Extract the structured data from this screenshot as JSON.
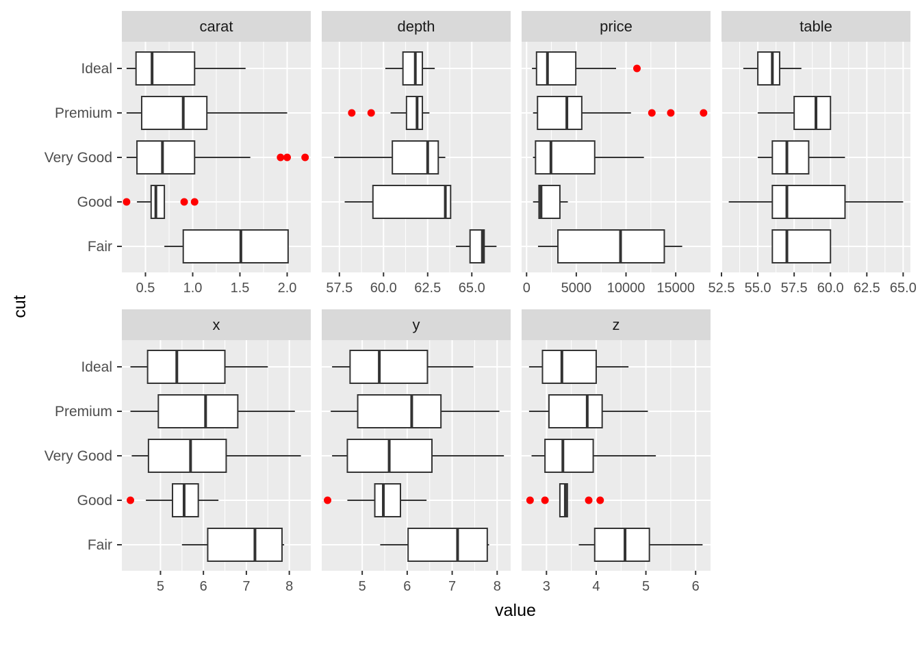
{
  "chart_data": {
    "type": "boxplot",
    "layout": "faceted horizontal boxplots",
    "xlabel": "value",
    "ylabel": "cut",
    "categories": [
      "Ideal",
      "Premium",
      "Very Good",
      "Good",
      "Fair"
    ],
    "outlier_color": "#ff0000",
    "box_fill": "#ffffff",
    "panel_background": "#ebebeb",
    "strip_background": "#d9d9d9",
    "facets": [
      {
        "name": "carat",
        "xlim": [
          0.25,
          2.25
        ],
        "ticks": [
          0.5,
          1.0,
          1.5,
          2.0
        ],
        "tick_labels": [
          "0.5",
          "1.0",
          "1.5",
          "2.0"
        ],
        "boxes": [
          {
            "cut": "Ideal",
            "min": 0.3,
            "q1": 0.4,
            "median": 0.57,
            "q3": 1.02,
            "max": 1.56,
            "outliers": []
          },
          {
            "cut": "Premium",
            "min": 0.3,
            "q1": 0.46,
            "median": 0.9,
            "q3": 1.15,
            "max": 2.0,
            "outliers": []
          },
          {
            "cut": "Very Good",
            "min": 0.3,
            "q1": 0.41,
            "median": 0.68,
            "q3": 1.02,
            "max": 1.61,
            "outliers": [
              1.93,
              2.0,
              2.19
            ]
          },
          {
            "cut": "Good",
            "min": 0.41,
            "q1": 0.56,
            "median": 0.61,
            "q3": 0.7,
            "max": 0.7,
            "outliers": [
              0.3,
              0.91,
              1.02
            ]
          },
          {
            "cut": "Fair",
            "min": 0.7,
            "q1": 0.9,
            "median": 1.51,
            "q3": 2.01,
            "max": 2.01,
            "outliers": []
          }
        ]
      },
      {
        "name": "depth",
        "xlim": [
          56.5,
          67.2
        ],
        "ticks": [
          57.5,
          60.0,
          62.5,
          65.0
        ],
        "tick_labels": [
          "57.5",
          "60.0",
          "62.5",
          "65.0"
        ],
        "boxes": [
          {
            "cut": "Ideal",
            "min": 60.1,
            "q1": 61.1,
            "median": 61.8,
            "q3": 62.2,
            "max": 62.9,
            "outliers": []
          },
          {
            "cut": "Premium",
            "min": 60.4,
            "q1": 61.3,
            "median": 61.9,
            "q3": 62.2,
            "max": 62.6,
            "outliers": [
              58.2,
              59.3
            ]
          },
          {
            "cut": "Very Good",
            "min": 57.2,
            "q1": 60.5,
            "median": 62.5,
            "q3": 63.1,
            "max": 63.5,
            "outliers": []
          },
          {
            "cut": "Good",
            "min": 57.8,
            "q1": 59.4,
            "median": 63.5,
            "q3": 63.8,
            "max": 63.8,
            "outliers": []
          },
          {
            "cut": "Fair",
            "min": 64.1,
            "q1": 64.9,
            "median": 65.6,
            "q3": 65.7,
            "max": 66.4,
            "outliers": []
          }
        ]
      },
      {
        "name": "price",
        "xlim": [
          -500,
          18500
        ],
        "ticks": [
          0,
          5000,
          10000,
          15000
        ],
        "tick_labels": [
          "0",
          "5000",
          "10000",
          "15000"
        ],
        "boxes": [
          {
            "cut": "Ideal",
            "min": 540,
            "q1": 1000,
            "median": 2100,
            "q3": 4950,
            "max": 9000,
            "outliers": [
              11100
            ]
          },
          {
            "cut": "Premium",
            "min": 650,
            "q1": 1100,
            "median": 4050,
            "q3": 5550,
            "max": 10500,
            "outliers": [
              12600,
              14500,
              17800
            ]
          },
          {
            "cut": "Very Good",
            "min": 640,
            "q1": 900,
            "median": 2450,
            "q3": 6850,
            "max": 11800,
            "outliers": []
          },
          {
            "cut": "Good",
            "min": 650,
            "q1": 1250,
            "median": 1450,
            "q3": 3350,
            "max": 4150,
            "outliers": []
          },
          {
            "cut": "Fair",
            "min": 1150,
            "q1": 3150,
            "median": 9450,
            "q3": 13850,
            "max": 15650,
            "outliers": []
          }
        ]
      },
      {
        "name": "table",
        "xlim": [
          52.5,
          65.5
        ],
        "ticks": [
          52.5,
          55.0,
          57.5,
          60.0,
          62.5,
          65.0
        ],
        "tick_labels": [
          "52.5",
          "55.0",
          "57.5",
          "60.0",
          "62.5",
          "65.0"
        ],
        "boxes": [
          {
            "cut": "Ideal",
            "min": 54.0,
            "q1": 55.0,
            "median": 56.0,
            "q3": 56.5,
            "max": 58.0,
            "outliers": []
          },
          {
            "cut": "Premium",
            "min": 55.0,
            "q1": 57.5,
            "median": 59.0,
            "q3": 60.0,
            "max": 60.0,
            "outliers": []
          },
          {
            "cut": "Very Good",
            "min": 55.0,
            "q1": 56.0,
            "median": 57.0,
            "q3": 58.5,
            "max": 61.0,
            "outliers": []
          },
          {
            "cut": "Good",
            "min": 53.0,
            "q1": 56.0,
            "median": 57.0,
            "q3": 61.0,
            "max": 65.0,
            "outliers": []
          },
          {
            "cut": "Fair",
            "min": 56.0,
            "q1": 56.0,
            "median": 57.0,
            "q3": 60.0,
            "max": 60.0,
            "outliers": []
          }
        ]
      },
      {
        "name": "x",
        "xlim": [
          4.1,
          8.5
        ],
        "ticks": [
          5,
          6,
          7,
          8
        ],
        "tick_labels": [
          "5",
          "6",
          "7",
          "8"
        ],
        "boxes": [
          {
            "cut": "Ideal",
            "min": 4.3,
            "q1": 4.7,
            "median": 5.38,
            "q3": 6.5,
            "max": 7.5,
            "outliers": []
          },
          {
            "cut": "Premium",
            "min": 4.3,
            "q1": 4.95,
            "median": 6.05,
            "q3": 6.8,
            "max": 8.13,
            "outliers": []
          },
          {
            "cut": "Very Good",
            "min": 4.33,
            "q1": 4.72,
            "median": 5.7,
            "q3": 6.53,
            "max": 8.27,
            "outliers": []
          },
          {
            "cut": "Good",
            "min": 4.66,
            "q1": 5.28,
            "median": 5.55,
            "q3": 5.88,
            "max": 6.35,
            "outliers": [
              4.3
            ]
          },
          {
            "cut": "Fair",
            "min": 5.5,
            "q1": 6.1,
            "median": 7.2,
            "q3": 7.83,
            "max": 7.88,
            "outliers": []
          }
        ]
      },
      {
        "name": "y",
        "xlim": [
          4.1,
          8.3
        ],
        "ticks": [
          5,
          6,
          7,
          8
        ],
        "tick_labels": [
          "5",
          "6",
          "7",
          "8"
        ],
        "boxes": [
          {
            "cut": "Ideal",
            "min": 4.33,
            "q1": 4.73,
            "median": 5.38,
            "q3": 6.45,
            "max": 7.47,
            "outliers": []
          },
          {
            "cut": "Premium",
            "min": 4.3,
            "q1": 4.9,
            "median": 6.1,
            "q3": 6.75,
            "max": 8.05,
            "outliers": []
          },
          {
            "cut": "Very Good",
            "min": 4.33,
            "q1": 4.67,
            "median": 5.6,
            "q3": 6.55,
            "max": 8.15,
            "outliers": []
          },
          {
            "cut": "Good",
            "min": 4.67,
            "q1": 5.28,
            "median": 5.47,
            "q3": 5.85,
            "max": 6.43,
            "outliers": [
              4.23
            ]
          },
          {
            "cut": "Fair",
            "min": 5.4,
            "q1": 6.02,
            "median": 7.12,
            "q3": 7.78,
            "max": 7.82,
            "outliers": []
          }
        ]
      },
      {
        "name": "z",
        "xlim": [
          2.5,
          6.3
        ],
        "ticks": [
          3,
          4,
          5,
          6
        ],
        "tick_labels": [
          "3",
          "4",
          "5",
          "6"
        ],
        "boxes": [
          {
            "cut": "Ideal",
            "min": 2.65,
            "q1": 2.92,
            "median": 3.31,
            "q3": 4.0,
            "max": 4.65,
            "outliers": []
          },
          {
            "cut": "Premium",
            "min": 2.65,
            "q1": 3.05,
            "median": 3.82,
            "q3": 4.12,
            "max": 5.04,
            "outliers": []
          },
          {
            "cut": "Very Good",
            "min": 2.7,
            "q1": 2.97,
            "median": 3.33,
            "q3": 3.94,
            "max": 5.2,
            "outliers": []
          },
          {
            "cut": "Good",
            "min": 3.27,
            "q1": 3.27,
            "median": 3.38,
            "q3": 3.42,
            "max": 3.42,
            "outliers": [
              2.67,
              2.97,
              3.85,
              4.08
            ]
          },
          {
            "cut": "Fair",
            "min": 3.65,
            "q1": 3.97,
            "median": 4.58,
            "q3": 5.07,
            "max": 6.14,
            "outliers": []
          }
        ]
      }
    ]
  }
}
